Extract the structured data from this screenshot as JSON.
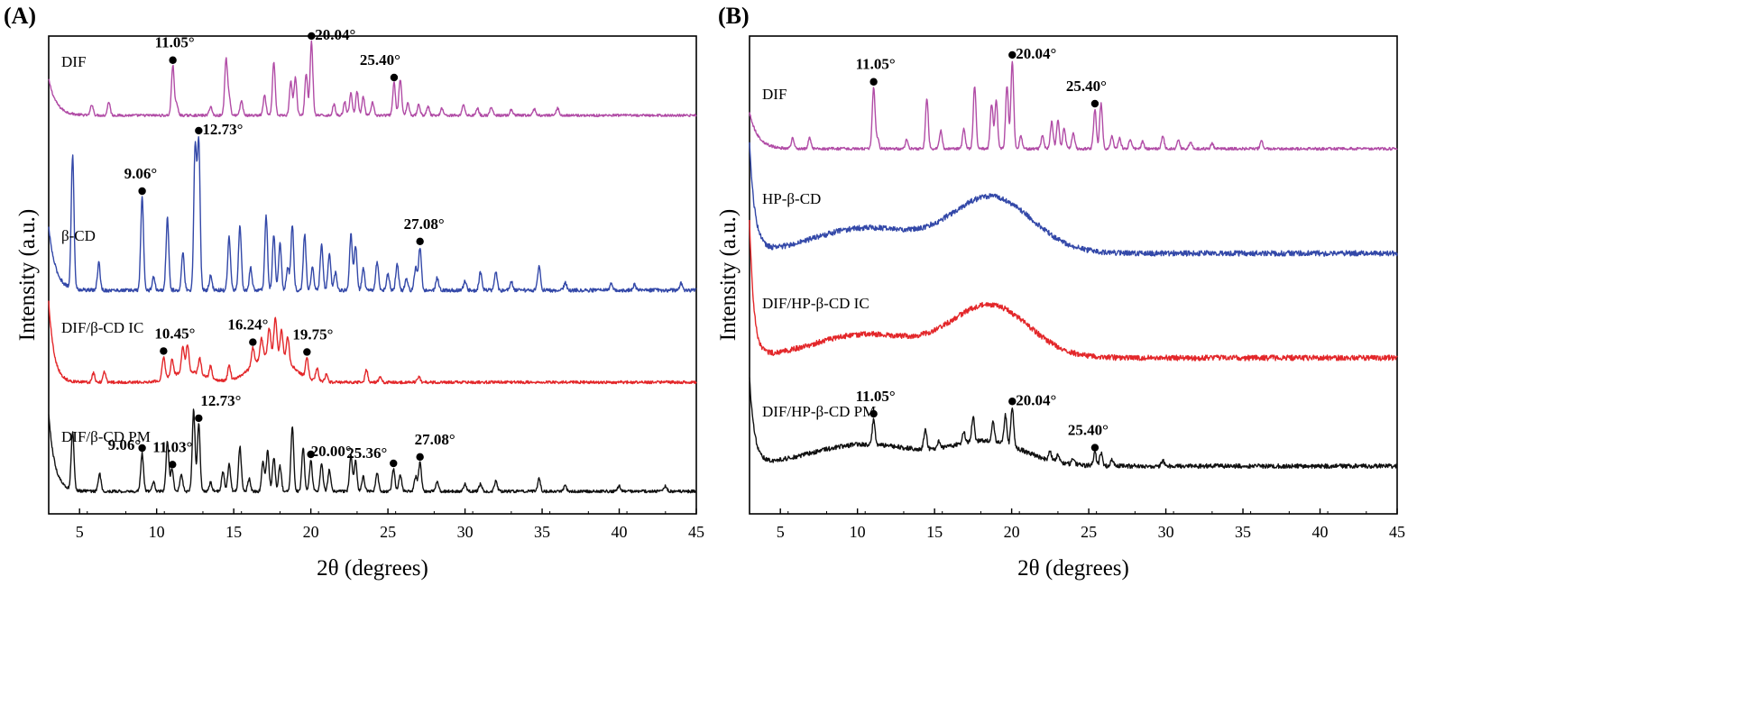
{
  "chart_data": [
    {
      "panel": "(A)",
      "type": "line",
      "xlabel": "2θ (degrees)",
      "ylabel": "Intensity (a.u.)",
      "xlim": [
        3,
        45
      ],
      "xticks": [
        5,
        10,
        15,
        20,
        25,
        30,
        35,
        40,
        45
      ],
      "yticks": [],
      "grid": false,
      "series": [
        {
          "name": "DIF",
          "color": "#b14ca6",
          "peaks": [
            {
              "x": 11.05,
              "label": "11.05°"
            },
            {
              "x": 20.04,
              "label": "20.04°"
            },
            {
              "x": 25.4,
              "label": "25.40°"
            }
          ]
        },
        {
          "name": "β-CD",
          "color": "#3348a8",
          "peaks": [
            {
              "x": 9.06,
              "label": "9.06°"
            },
            {
              "x": 12.73,
              "label": "12.73°"
            },
            {
              "x": 27.08,
              "label": "27.08°"
            }
          ]
        },
        {
          "name": "DIF/β-CD IC",
          "color": "#e3272a",
          "peaks": [
            {
              "x": 10.45,
              "label": "10.45°"
            },
            {
              "x": 16.24,
              "label": "16.24°"
            },
            {
              "x": 19.75,
              "label": "19.75°"
            }
          ]
        },
        {
          "name": "DIF/β-CD  PM",
          "color": "#111111",
          "peaks": [
            {
              "x": 9.06,
              "label": "9.06°"
            },
            {
              "x": 11.03,
              "label": "11.03°"
            },
            {
              "x": 12.73,
              "label": "12.73°"
            },
            {
              "x": 20.0,
              "label": "20.00°"
            },
            {
              "x": 25.36,
              "label": "25.36°"
            },
            {
              "x": 27.08,
              "label": "27.08°"
            }
          ]
        }
      ]
    },
    {
      "panel": "(B)",
      "type": "line",
      "xlabel": "2θ (degrees)",
      "ylabel": "Intensity (a.u.)",
      "xlim": [
        3,
        45
      ],
      "xticks": [
        5,
        10,
        15,
        20,
        25,
        30,
        35,
        40,
        45
      ],
      "yticks": [],
      "grid": false,
      "series": [
        {
          "name": "DIF",
          "color": "#b14ca6",
          "peaks": [
            {
              "x": 11.05,
              "label": "11.05°"
            },
            {
              "x": 20.04,
              "label": "20.04°"
            },
            {
              "x": 25.4,
              "label": "25.40°"
            }
          ]
        },
        {
          "name": "HP-β-CD",
          "color": "#3348a8",
          "peaks": []
        },
        {
          "name": "DIF/HP-β-CD IC",
          "color": "#e3272a",
          "peaks": []
        },
        {
          "name": "DIF/HP-β-CD PM",
          "color": "#111111",
          "peaks": [
            {
              "x": 11.05,
              "label": "11.05°"
            },
            {
              "x": 20.04,
              "label": "20.04°"
            },
            {
              "x": 25.4,
              "label": "25.40°"
            }
          ]
        }
      ]
    }
  ]
}
